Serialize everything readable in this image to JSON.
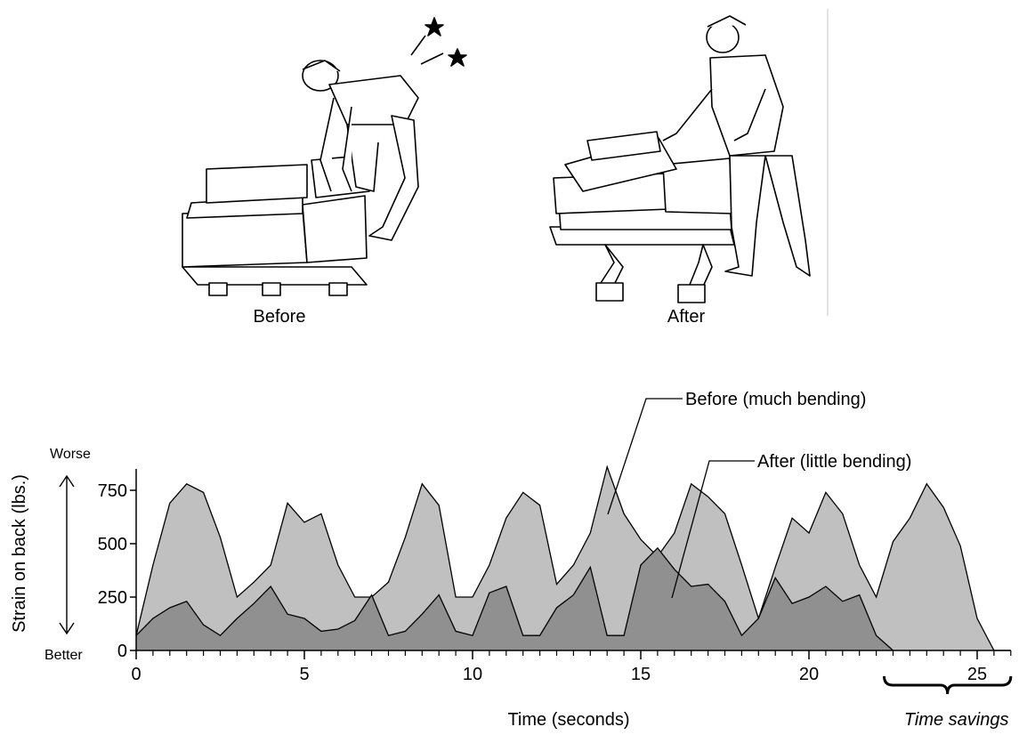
{
  "illustrations": {
    "before_label": "Before",
    "after_label": "After"
  },
  "chart_data": {
    "type": "area",
    "y_label": "Strain on back (lbs.)",
    "x_label": "Time (seconds)",
    "y_top_label": "Worse",
    "y_bottom_label": "Better",
    "brace_label": "Time savings",
    "xlim": [
      0,
      26
    ],
    "xticks": [
      0,
      5,
      10,
      15,
      20,
      25
    ],
    "ylim": [
      0,
      850
    ],
    "yticks": [
      0,
      250,
      500,
      750
    ],
    "series": [
      {
        "name": "Before (much bending)",
        "color": "#c0c0c0",
        "x": [
          0,
          0.5,
          1,
          1.5,
          2,
          2.5,
          3,
          3.5,
          4,
          4.5,
          5,
          5.5,
          6,
          6.5,
          7,
          7.5,
          8,
          8.5,
          9,
          9.5,
          10,
          10.5,
          11,
          11.5,
          12,
          12.5,
          13,
          13.5,
          14,
          14.5,
          15,
          15.5,
          16,
          16.5,
          17,
          17.5,
          18,
          18.5,
          19,
          19.5,
          20,
          20.5,
          21,
          21.5,
          22,
          22.5,
          23,
          23.5,
          24,
          24.5,
          25,
          25.5,
          26
        ],
        "values": [
          70,
          400,
          690,
          780,
          740,
          530,
          250,
          320,
          400,
          690,
          600,
          640,
          400,
          250,
          250,
          320,
          530,
          780,
          680,
          250,
          250,
          400,
          620,
          740,
          680,
          310,
          400,
          550,
          860,
          640,
          520,
          440,
          550,
          780,
          720,
          640,
          400,
          150,
          390,
          620,
          550,
          740,
          640,
          400,
          250,
          510,
          620,
          780,
          670,
          490,
          150,
          0,
          0
        ]
      },
      {
        "name": "After (little bending)",
        "color": "#909090",
        "x": [
          0,
          0.5,
          1,
          1.5,
          2,
          2.5,
          3,
          3.5,
          4,
          4.5,
          5,
          5.5,
          6,
          6.5,
          7,
          7.5,
          8,
          8.5,
          9,
          9.5,
          10,
          10.5,
          11,
          11.5,
          12,
          12.5,
          13,
          13.5,
          14,
          14.5,
          15,
          15.5,
          16,
          16.5,
          17,
          17.5,
          18,
          18.5,
          19,
          19.5,
          20,
          20.5,
          21,
          21.5,
          22,
          22.5
        ],
        "values": [
          70,
          150,
          200,
          230,
          120,
          70,
          150,
          220,
          300,
          170,
          150,
          90,
          100,
          140,
          260,
          70,
          90,
          170,
          260,
          90,
          70,
          270,
          300,
          70,
          70,
          200,
          260,
          390,
          70,
          70,
          400,
          480,
          380,
          300,
          310,
          230,
          70,
          150,
          340,
          220,
          250,
          300,
          230,
          260,
          70,
          0
        ]
      }
    ]
  }
}
